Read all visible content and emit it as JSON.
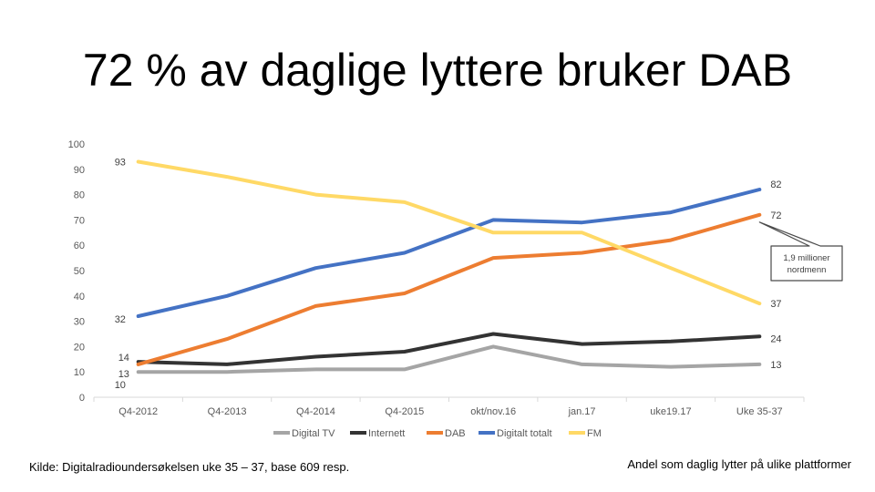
{
  "slide": {
    "title": "72 % av daglige lyttere bruker DAB",
    "source": "Kilde: Digitalradioundersøkelsen uke 35 – 37, base 609 resp.",
    "caption": "Andel som daglig lytter på ulike plattformer"
  },
  "chart_data": {
    "type": "line",
    "categories": [
      "Q4-2012",
      "Q4-2013",
      "Q4-2014",
      "Q4-2015",
      "okt/nov.16",
      "jan.17",
      "uke19.17",
      "Uke 35-37"
    ],
    "yticks": [
      "0",
      "10",
      "20",
      "30",
      "40",
      "50",
      "60",
      "70",
      "80",
      "90",
      "100"
    ],
    "ylim": [
      0,
      100
    ],
    "grid": false,
    "legend_position": "bottom",
    "series": [
      {
        "name": "Digital TV",
        "color": "#A5A5A5",
        "values": [
          10,
          10,
          11,
          11,
          20,
          13,
          12,
          13
        ]
      },
      {
        "name": "Internett",
        "color": "#333333",
        "values": [
          14,
          13,
          16,
          18,
          25,
          21,
          22,
          24
        ]
      },
      {
        "name": "DAB",
        "color": "#ED7D31",
        "values": [
          13,
          23,
          36,
          41,
          55,
          57,
          62,
          72
        ]
      },
      {
        "name": "Digitalt totalt",
        "color": "#4472C4",
        "values": [
          32,
          40,
          51,
          57,
          70,
          69,
          73,
          82
        ]
      },
      {
        "name": "FM",
        "color": "#FFD966",
        "values": [
          93,
          87,
          80,
          77,
          65,
          65,
          51,
          37
        ]
      }
    ],
    "data_labels": [
      {
        "text": "93",
        "series": 4,
        "index": 0
      },
      {
        "text": "32",
        "series": 3,
        "index": 0
      },
      {
        "text": "14",
        "series": 1,
        "index": 0
      },
      {
        "text": "13",
        "series": 2,
        "index": 0
      },
      {
        "text": "10",
        "series": 0,
        "index": 0
      },
      {
        "text": "82",
        "series": 3,
        "index": 7
      },
      {
        "text": "72",
        "series": 2,
        "index": 7
      },
      {
        "text": "37",
        "series": 4,
        "index": 7
      },
      {
        "text": "24",
        "series": 1,
        "index": 7
      },
      {
        "text": "13",
        "series": 0,
        "index": 7
      }
    ],
    "callout": {
      "line1": "1,9 millioner",
      "line2": "nordmenn"
    }
  }
}
